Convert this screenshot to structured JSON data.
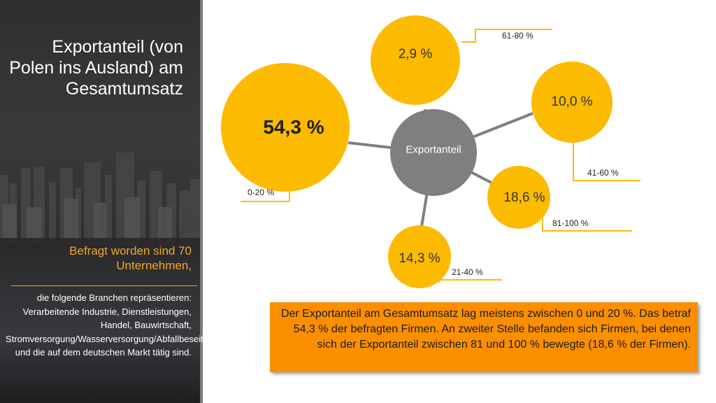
{
  "sidebar": {
    "title": "Exportanteil (von Polen ins Ausland) am Gesamtumsatz",
    "surveyed": "Befragt worden sind 70 Unternehmen,",
    "branches": "die folgende Branchen repräsentieren: Verarbeitende Industrie, Dienstleistungen, Handel, Bauwirtschaft, Stromversorgung/Wasserversorgung/Abfallbeseitigung, und die auf dem deutschen Markt tätig sind."
  },
  "diagram": {
    "center_label": "Exportanteil",
    "bubbles": [
      {
        "id": "0-20",
        "value_label": "54,3 %",
        "range_label": "0-20 %"
      },
      {
        "id": "61-80",
        "value_label": "2,9 %",
        "range_label": "61-80 %"
      },
      {
        "id": "41-60",
        "value_label": "10,0 %",
        "range_label": "41-60 %"
      },
      {
        "id": "81-100",
        "value_label": "18,6 %",
        "range_label": "81-100 %"
      },
      {
        "id": "21-40",
        "value_label": "14,3 %",
        "range_label": "21-40 %"
      }
    ]
  },
  "colors": {
    "bubble": "#fcbb00",
    "center": "#7f7f7f",
    "connector": "#7f7f7f",
    "accent": "#f5a623",
    "info_box": "#fb8f00"
  },
  "info_box": {
    "text": "Der Exportanteil am Gesamtumsatz lag meistens zwischen 0 und 20 %. Das betraf 54,3 % der befragten Firmen. An zweiter Stelle befanden sich Firmen, bei denen sich der Exportanteil zwischen 81 und 100 % bewegte (18,6 % der Firmen)."
  }
}
